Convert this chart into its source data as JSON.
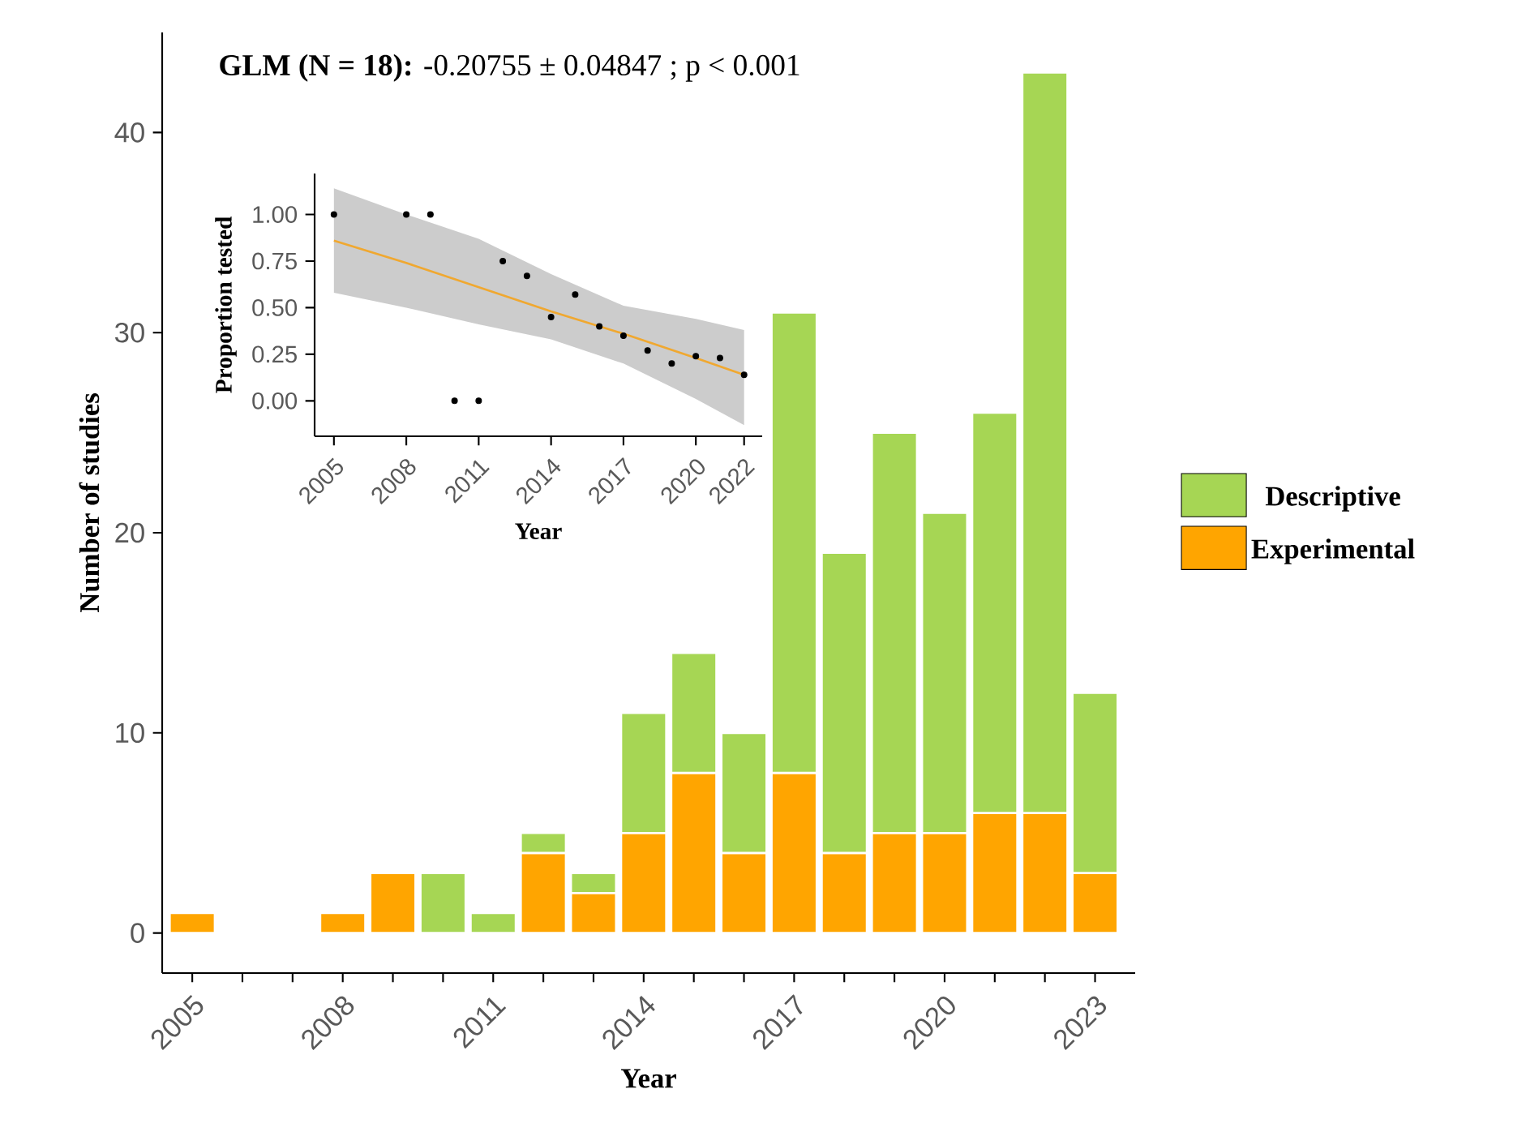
{
  "chart_data": [
    {
      "type": "bar",
      "stacked": true,
      "xlabel": "Year",
      "ylabel": "Number of studies",
      "x": [
        2005,
        2006,
        2007,
        2008,
        2009,
        2010,
        2011,
        2012,
        2013,
        2014,
        2015,
        2016,
        2017,
        2018,
        2019,
        2020,
        2021,
        2022,
        2023
      ],
      "series": [
        {
          "name": "Experimental",
          "color": "#ffa500",
          "values": [
            1,
            0,
            0,
            1,
            3,
            0,
            0,
            4,
            2,
            5,
            8,
            4,
            8,
            4,
            5,
            5,
            6,
            6,
            3
          ]
        },
        {
          "name": "Descriptive",
          "color": "#a6d654",
          "values": [
            0,
            0,
            0,
            0,
            0,
            3,
            1,
            1,
            1,
            6,
            6,
            6,
            23,
            15,
            20,
            16,
            20,
            37,
            9
          ]
        }
      ],
      "xlim": [
        2004.4,
        2023.8
      ],
      "ylim": [
        -2,
        45
      ],
      "xticks": [
        2005,
        {
          "value": 2006,
          "label": null
        },
        {
          "value": 2007,
          "label": null
        },
        2008,
        {
          "value": 2009,
          "label": null
        },
        {
          "value": 2010,
          "label": null
        },
        2011,
        {
          "value": 2012,
          "label": null
        },
        {
          "value": 2013,
          "label": null
        },
        2014,
        {
          "value": 2015,
          "label": null
        },
        {
          "value": 2016,
          "label": null
        },
        2017,
        {
          "value": 2018,
          "label": null
        },
        {
          "value": 2019,
          "label": null
        },
        2020,
        {
          "value": 2021,
          "label": null
        },
        {
          "value": 2022,
          "label": null
        },
        2023
      ],
      "yticks": [
        0,
        10,
        20,
        30,
        40
      ],
      "legend": "right",
      "grid": false,
      "annotations": [
        "**GLM (N = 18):** -0.20755 ± 0.04847 ; p < 0.001"
      ]
    },
    {
      "type": "scatter",
      "xlabel": "Year",
      "ylabel": "Proportion tested",
      "x": [
        2005,
        2008,
        2009,
        2010,
        2011,
        2012,
        2013,
        2014,
        2015,
        2016,
        2017,
        2018,
        2019,
        2020,
        2021,
        2022
      ],
      "series": [
        {
          "color": "#000000",
          "values": [
            1.0,
            1.0,
            1.0,
            0.0,
            0.0,
            0.75,
            0.67,
            0.45,
            0.57,
            0.4,
            0.35,
            0.27,
            0.2,
            0.24,
            0.23,
            0.14
          ]
        },
        {
          "type": "line",
          "color": "#f0a830",
          "x": [
            2005,
            2008,
            2011,
            2014,
            2017,
            2020,
            2022
          ],
          "values": [
            0.86,
            0.74,
            0.61,
            0.48,
            0.36,
            0.23,
            0.14
          ],
          "lower": [
            0.58,
            0.5,
            0.41,
            0.33,
            0.2,
            0.01,
            -0.13
          ],
          "upper": [
            1.14,
            1.0,
            0.87,
            0.68,
            0.51,
            0.44,
            0.38
          ]
        }
      ],
      "xlim": [
        2004.2,
        2022.75
      ],
      "ylim": [
        -0.19,
        1.22
      ],
      "xticks": [
        2005,
        2008,
        2011,
        2014,
        2017,
        2020,
        2022
      ],
      "yticks": [
        {
          "value": 0,
          "label": "0.00"
        },
        {
          "value": 0.25,
          "label": "0.25"
        },
        {
          "value": 0.5,
          "label": "0.50"
        },
        {
          "value": 0.75,
          "label": "0.75"
        },
        {
          "value": 1,
          "label": "1.00"
        }
      ],
      "grid": false
    }
  ]
}
